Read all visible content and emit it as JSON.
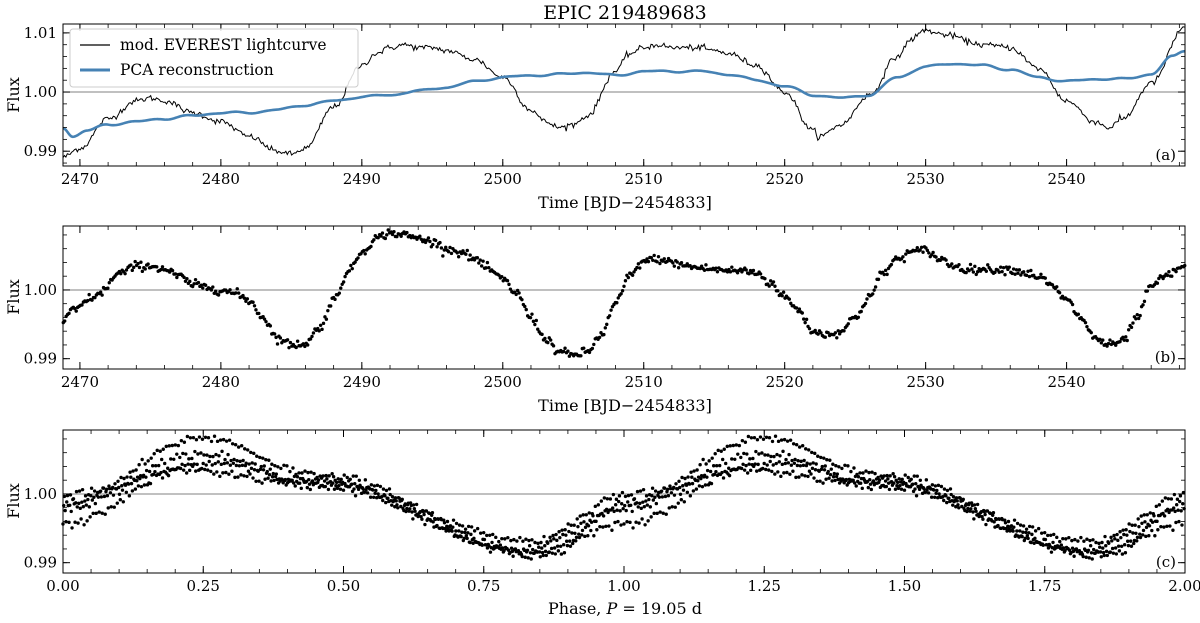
{
  "figure_title": "EPIC 219489683",
  "colors": {
    "lightcurve": "#000000",
    "pca": "#4682b4",
    "reference": "#808080"
  },
  "legend": {
    "entries": [
      {
        "label": "mod. EVEREST lightcurve",
        "color": "#000000"
      },
      {
        "label": "PCA reconstruction",
        "color": "#4682b4"
      }
    ],
    "placement": "upper-left"
  },
  "chart_data": [
    {
      "id": "a",
      "type": "line",
      "tag": "(a)",
      "title": "EPIC 219489683",
      "xlabel": "Time [BJD−2454833]",
      "ylabel": "Flux",
      "xlim": [
        2468.8,
        2548.4
      ],
      "ylim": [
        0.9875,
        1.0115
      ],
      "xticks": [
        2470,
        2480,
        2490,
        2500,
        2510,
        2520,
        2530,
        2540
      ],
      "xtick_labels": [
        "2470",
        "2480",
        "2490",
        "2500",
        "2510",
        "2520",
        "2530",
        "2540"
      ],
      "yticks": [
        0.99,
        1.0,
        1.01
      ],
      "ytick_labels": [
        "0.99",
        "1.00",
        "1.01"
      ],
      "reference_line": 1.0,
      "grid": false,
      "series": [
        {
          "name": "mod. EVEREST lightcurve",
          "style": "thin-noisy-line",
          "color": "#000000",
          "x": [
            2468.8,
            2470,
            2472,
            2474,
            2475,
            2476,
            2478,
            2480,
            2482,
            2484,
            2485,
            2486,
            2488,
            2490,
            2491,
            2492,
            2493,
            2494,
            2495,
            2496,
            2498,
            2500,
            2502,
            2503,
            2504,
            2505,
            2506,
            2508,
            2509,
            2510,
            2511,
            2512,
            2513,
            2514,
            2515,
            2516,
            2518,
            2520,
            2522,
            2522.5,
            2524,
            2526,
            2528,
            2529,
            2530,
            2531,
            2532,
            2533,
            2534,
            2535,
            2536,
            2538,
            2540,
            2542,
            2543,
            2544,
            2546,
            2548.4
          ],
          "y": [
            0.989,
            0.9905,
            0.9955,
            0.9985,
            0.999,
            0.9985,
            0.9965,
            0.995,
            0.9925,
            0.99,
            0.9895,
            0.9905,
            0.9975,
            1.0045,
            1.0065,
            1.0075,
            1.008,
            1.0075,
            1.0075,
            1.007,
            1.0055,
            1.0025,
            0.997,
            0.995,
            0.994,
            0.9945,
            0.996,
            1.0035,
            1.0065,
            1.0075,
            1.008,
            1.0075,
            1.0075,
            1.0075,
            1.007,
            1.0065,
            1.0045,
            1.0,
            0.9935,
            0.9925,
            0.9945,
            0.9995,
            1.006,
            1.009,
            1.0105,
            1.0098,
            1.0095,
            1.0085,
            1.008,
            1.0078,
            1.0075,
            1.004,
            0.9985,
            0.995,
            0.994,
            0.9955,
            1.0015,
            1.011
          ],
          "noise": 0.00025
        },
        {
          "name": "PCA reconstruction",
          "style": "thick-smooth-line",
          "color": "#4682b4",
          "x": [
            2468.8,
            2469.5,
            2470.5,
            2472,
            2474,
            2476,
            2478,
            2480,
            2482,
            2484,
            2486,
            2488,
            2490,
            2492,
            2494,
            2496,
            2498,
            2500,
            2502,
            2504,
            2506,
            2508,
            2510,
            2512,
            2514,
            2516,
            2518,
            2520,
            2522,
            2524,
            2526,
            2528,
            2530,
            2532,
            2534,
            2536,
            2538,
            2540,
            2542,
            2544,
            2546,
            2547.5,
            2548.4
          ],
          "y": [
            0.994,
            0.9925,
            0.9935,
            0.9945,
            0.995,
            0.9955,
            0.996,
            0.9965,
            0.9965,
            0.997,
            0.9978,
            0.9985,
            0.9992,
            0.9995,
            1.0002,
            1.0008,
            1.0018,
            1.0025,
            1.0028,
            1.003,
            1.0033,
            1.0028,
            1.0035,
            1.0035,
            1.0035,
            1.003,
            1.002,
            1.001,
            0.9995,
            0.999,
            0.9995,
            1.0025,
            1.0043,
            1.0048,
            1.0045,
            1.0038,
            1.0025,
            1.0018,
            1.0022,
            1.0022,
            1.003,
            1.006,
            1.007
          ],
          "smooth_wiggle": 0.00012
        }
      ]
    },
    {
      "id": "b",
      "type": "scatter",
      "tag": "(b)",
      "xlabel": "Time [BJD−2454833]",
      "ylabel": "Flux",
      "xlim": [
        2468.8,
        2548.4
      ],
      "ylim": [
        0.9885,
        1.0093
      ],
      "xticks": [
        2470,
        2480,
        2490,
        2500,
        2510,
        2520,
        2530,
        2540
      ],
      "xtick_labels": [
        "2470",
        "2480",
        "2490",
        "2500",
        "2510",
        "2520",
        "2530",
        "2540"
      ],
      "yticks": [
        0.99,
        1.0
      ],
      "ytick_labels": [
        "0.99",
        "1.00"
      ],
      "reference_line": 1.0,
      "grid": false,
      "series": [
        {
          "name": "",
          "color": "#000000",
          "marker": "dot",
          "cadence_days": 0.102,
          "noise": 0.0003,
          "knots_x": [
            2468.8,
            2469.5,
            2471,
            2473,
            2474,
            2475,
            2476,
            2477,
            2478,
            2479,
            2480,
            2481,
            2482,
            2483,
            2484,
            2485,
            2486,
            2487,
            2488,
            2489,
            2490,
            2491,
            2492,
            2493,
            2494,
            2495,
            2496,
            2497,
            2498,
            2499,
            2500,
            2501,
            2502,
            2503,
            2504,
            2505,
            2506,
            2507,
            2508,
            2509,
            2510,
            2511,
            2512,
            2513,
            2514,
            2515,
            2516,
            2517,
            2518,
            2519,
            2520,
            2521,
            2522,
            2523,
            2524,
            2525,
            2526,
            2527,
            2528,
            2529,
            2530,
            2531,
            2532,
            2533,
            2534,
            2535,
            2536,
            2537,
            2538,
            2539,
            2540,
            2541,
            2542,
            2543,
            2544,
            2545,
            2546,
            2547,
            2548.4
          ],
          "knots_y": [
            0.9955,
            0.997,
            0.999,
            1.0025,
            1.0035,
            1.0035,
            1.003,
            1.002,
            1.0008,
            1.0004,
            1.0,
            0.9995,
            0.9985,
            0.996,
            0.993,
            0.992,
            0.9922,
            0.9945,
            0.9985,
            1.0025,
            1.0055,
            1.0075,
            1.0083,
            1.008,
            1.0075,
            1.007,
            1.006,
            1.0055,
            1.0045,
            1.003,
            1.0015,
            0.9995,
            0.996,
            0.993,
            0.991,
            0.9905,
            0.991,
            0.9935,
            0.998,
            1.002,
            1.0042,
            1.0045,
            1.004,
            1.0035,
            1.0032,
            1.003,
            1.0028,
            1.0028,
            1.0025,
            1.001,
            0.999,
            0.997,
            0.994,
            0.9935,
            0.994,
            0.996,
            0.999,
            1.0025,
            1.0045,
            1.0055,
            1.0058,
            1.0045,
            1.0035,
            1.003,
            1.003,
            1.003,
            1.003,
            1.0025,
            1.002,
            1.0005,
            0.9985,
            0.996,
            0.993,
            0.992,
            0.9925,
            0.996,
            1.0005,
            1.002,
            1.0035
          ]
        }
      ]
    },
    {
      "id": "c",
      "type": "scatter",
      "tag": "(c)",
      "xlabel": "Phase, P = 19.05 d",
      "ylabel": "Flux",
      "xlim": [
        0.0,
        2.0
      ],
      "ylim": [
        0.9885,
        1.0093
      ],
      "xticks": [
        0.0,
        0.25,
        0.5,
        0.75,
        1.0,
        1.25,
        1.5,
        1.75,
        2.0
      ],
      "xtick_labels": [
        "0.00",
        "0.25",
        "0.50",
        "0.75",
        "1.00",
        "1.25",
        "1.50",
        "1.75",
        "2.00"
      ],
      "yticks": [
        0.99,
        1.0
      ],
      "ytick_labels": [
        "0.99",
        "1.00"
      ],
      "reference_line": 1.0,
      "grid": false,
      "period_days": 19.05,
      "series": [
        {
          "name": "",
          "color": "#000000",
          "marker": "dot",
          "phase_folded": true,
          "cycles": [
            {
              "baseline": 0.9955,
              "peak": 1.0035,
              "peak_phase": 0.22,
              "min": 0.9915,
              "min_phase": 0.83
            },
            {
              "baseline": 0.9985,
              "peak": 1.0082,
              "peak_phase": 0.25,
              "min": 0.991,
              "min_phase": 0.86
            },
            {
              "baseline": 0.9998,
              "peak": 1.0045,
              "peak_phase": 0.28,
              "min": 0.9932,
              "min_phase": 0.84
            },
            {
              "baseline": 0.9978,
              "peak": 1.0058,
              "peak_phase": 0.24,
              "min": 0.9918,
              "min_phase": 0.82
            }
          ],
          "points_per_cycle": 186,
          "noise": 0.0003
        }
      ]
    }
  ]
}
